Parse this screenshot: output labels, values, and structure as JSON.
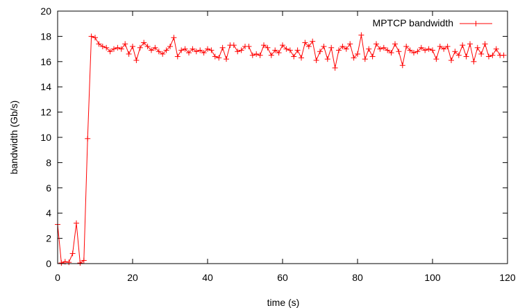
{
  "chart_data": {
    "type": "line",
    "title": "",
    "xlabel": "time (s)",
    "ylabel": "bandwidth (Gb/s)",
    "xlim": [
      0,
      120
    ],
    "ylim": [
      0,
      20
    ],
    "xticks": [
      0,
      20,
      40,
      60,
      80,
      100,
      120
    ],
    "yticks": [
      0,
      2,
      4,
      6,
      8,
      10,
      12,
      14,
      16,
      18,
      20
    ],
    "xtick_labels": [
      "0",
      "20",
      "40",
      "60",
      "80",
      "100",
      "120"
    ],
    "ytick_labels": [
      "0",
      "2",
      "4",
      "6",
      "8",
      "10",
      "12",
      "14",
      "16",
      "18",
      "20"
    ],
    "grid": false,
    "legend_position": "top-right",
    "series": [
      {
        "name": "MPTCP bandwidth",
        "color": "#ff0000",
        "marker": "plus",
        "x": [
          0,
          1,
          2,
          3,
          4,
          5,
          6,
          7,
          8,
          9,
          10,
          11,
          12,
          13,
          14,
          15,
          16,
          17,
          18,
          19,
          20,
          21,
          22,
          23,
          24,
          25,
          26,
          27,
          28,
          29,
          30,
          31,
          32,
          33,
          34,
          35,
          36,
          37,
          38,
          39,
          40,
          41,
          42,
          43,
          44,
          45,
          46,
          47,
          48,
          49,
          50,
          51,
          52,
          53,
          54,
          55,
          56,
          57,
          58,
          59,
          60,
          61,
          62,
          63,
          64,
          65,
          66,
          67,
          68,
          69,
          70,
          71,
          72,
          73,
          74,
          75,
          76,
          77,
          78,
          79,
          80,
          81,
          82,
          83,
          84,
          85,
          86,
          87,
          88,
          89,
          90,
          91,
          92,
          93,
          94,
          95,
          96,
          97,
          98,
          99,
          100,
          101,
          102,
          103,
          104,
          105,
          106,
          107,
          108,
          109,
          110,
          111,
          112,
          113,
          114,
          115,
          116,
          117,
          118,
          119
        ],
        "y": [
          3.1,
          0.05,
          0.15,
          0.1,
          0.8,
          3.2,
          0.05,
          0.25,
          9.9,
          18.0,
          17.9,
          17.4,
          17.2,
          17.1,
          16.8,
          17.0,
          17.1,
          17.0,
          17.4,
          16.6,
          17.2,
          16.1,
          17.1,
          17.5,
          17.2,
          16.9,
          17.1,
          16.8,
          16.6,
          16.9,
          17.2,
          17.9,
          16.4,
          16.9,
          17.0,
          16.7,
          17.0,
          16.8,
          16.9,
          16.7,
          17.0,
          16.9,
          16.4,
          16.3,
          17.1,
          16.2,
          17.3,
          17.3,
          16.8,
          16.9,
          17.2,
          17.2,
          16.5,
          16.6,
          16.5,
          17.3,
          17.1,
          16.5,
          16.9,
          16.7,
          17.3,
          17.0,
          16.9,
          16.4,
          16.9,
          16.3,
          17.5,
          17.2,
          17.6,
          16.1,
          16.8,
          17.2,
          16.2,
          17.1,
          15.5,
          16.9,
          17.2,
          17.0,
          17.4,
          16.3,
          16.6,
          18.1,
          16.2,
          17.0,
          16.4,
          17.4,
          17.0,
          17.1,
          16.9,
          16.7,
          17.4,
          16.8,
          15.7,
          17.2,
          16.9,
          16.7,
          16.8,
          17.1,
          16.9,
          17.0,
          16.9,
          16.2,
          17.2,
          17.0,
          17.2,
          16.1,
          16.8,
          16.5,
          17.3,
          16.4,
          17.4,
          16.0,
          17.1,
          16.6,
          17.4,
          16.4,
          16.5,
          17.0,
          16.5,
          16.5
        ]
      }
    ]
  }
}
